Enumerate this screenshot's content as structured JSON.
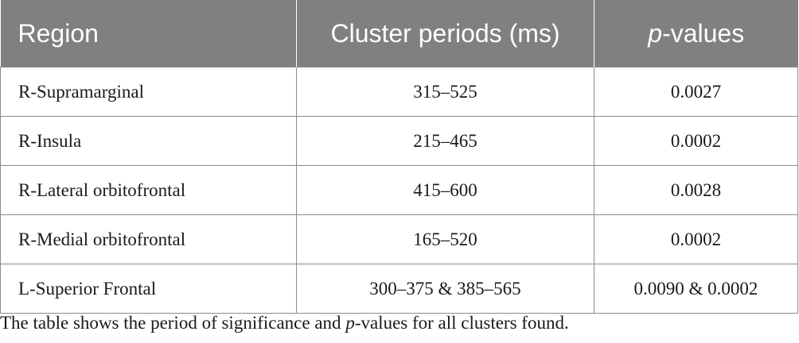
{
  "table": {
    "headers": {
      "region": "Region",
      "cluster": "Cluster periods (ms)",
      "p_italic": "p",
      "p_rest": "-values"
    },
    "rows": [
      {
        "region": "R-Supramarginal",
        "period": "315–525",
        "p": "0.0027"
      },
      {
        "region": "R-Insula",
        "period": "215–465",
        "p": "0.0002"
      },
      {
        "region": "R-Lateral orbitofrontal",
        "period": "415–600",
        "p": "0.0028"
      },
      {
        "region": "R-Medial orbitofrontal",
        "period": "165–520",
        "p": "0.0002"
      },
      {
        "region": "L-Superior Frontal",
        "period": "300–375 & 385–565",
        "p": "0.0090 & 0.0002"
      }
    ]
  },
  "caption": {
    "before": "The table shows the period of significance and ",
    "italic": "p",
    "after": "-values for all clusters found."
  }
}
